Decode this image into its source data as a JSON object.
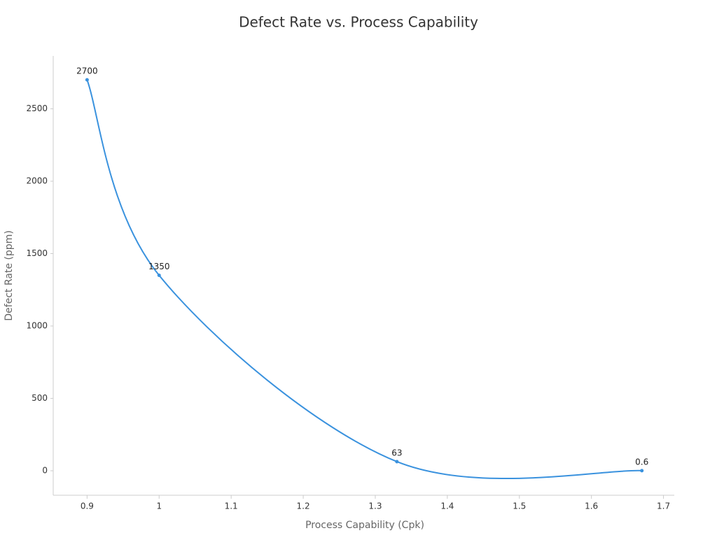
{
  "chart_data": {
    "type": "line",
    "title": "Defect Rate vs. Process Capability",
    "x_label": "Process Capability (Cpk)",
    "y_label": "Defect Rate (ppm)",
    "x": [
      0.9,
      1.0,
      1.33,
      1.67
    ],
    "series": [
      {
        "name": "Defect Rate",
        "color": "#3a92de",
        "values": [
          2700,
          1350,
          63,
          0.6
        ]
      }
    ],
    "smooth": true,
    "xlim": [
      0.853,
      1.715
    ],
    "xticks": [
      0.9,
      1,
      1.1,
      1.2,
      1.3,
      1.4,
      1.5,
      1.6,
      1.7
    ],
    "ylim": [
      -169,
      2865
    ],
    "yticks": [
      0,
      500,
      1000,
      1500,
      2000,
      2500
    ]
  }
}
